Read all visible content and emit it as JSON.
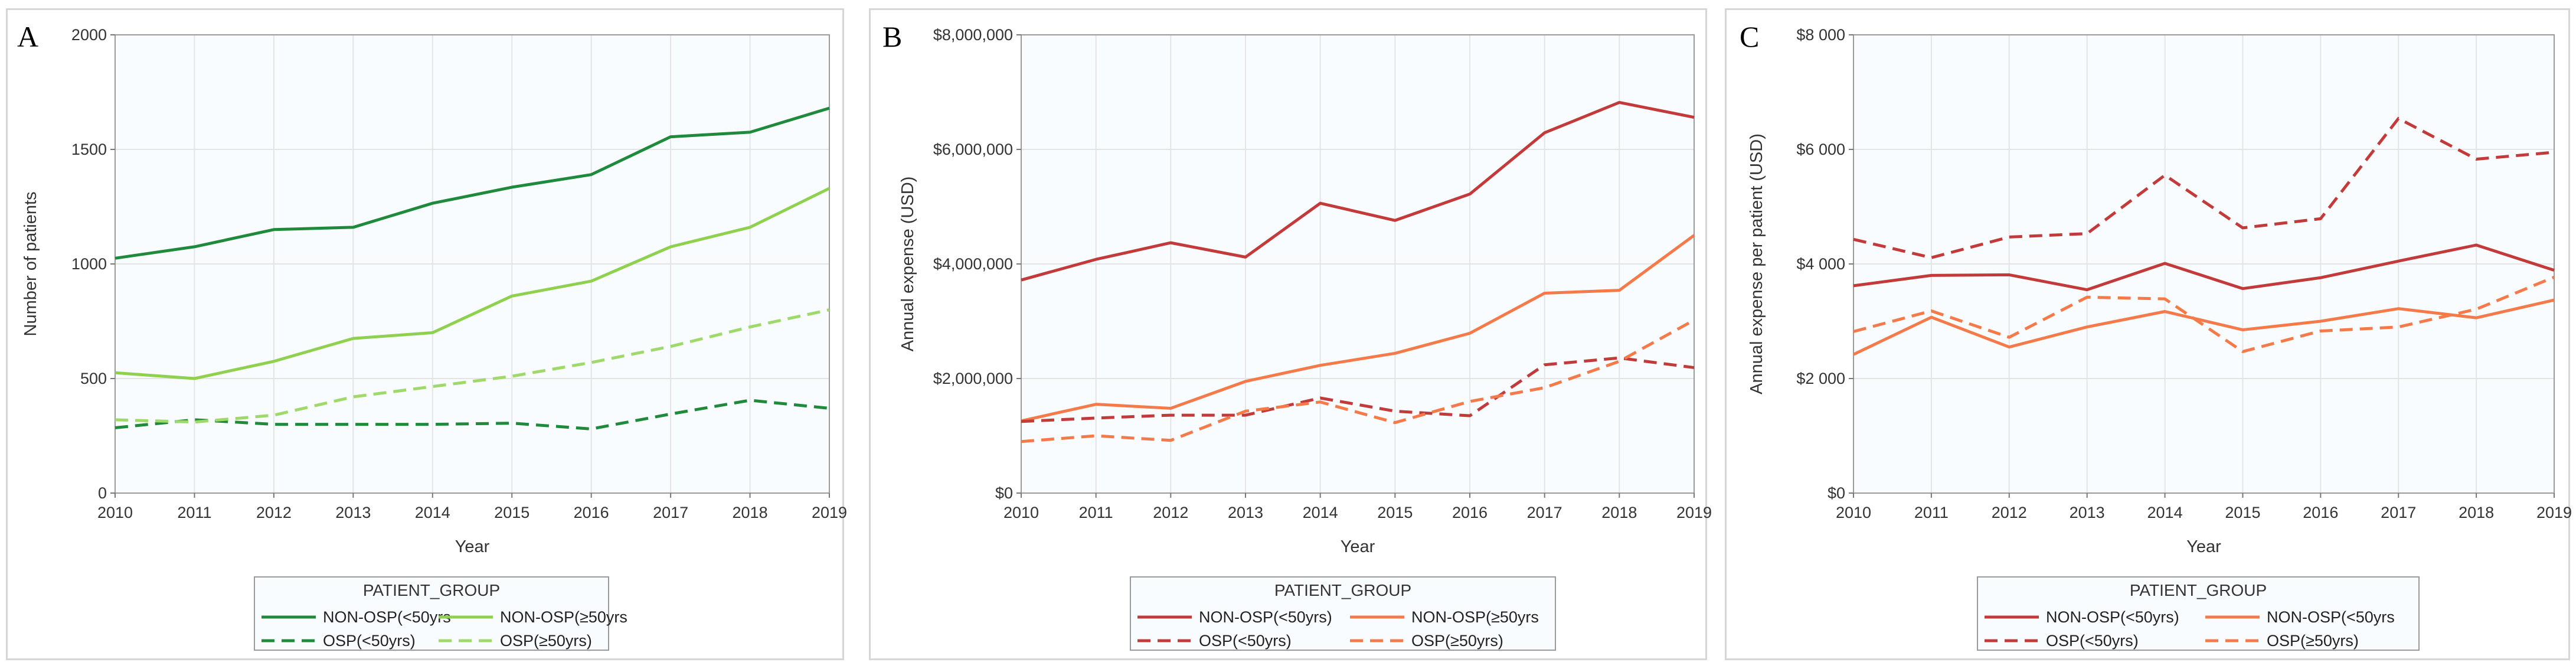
{
  "chart_data": [
    {
      "panel": "A",
      "type": "line",
      "title": "",
      "xlabel": "Year",
      "ylabel": "Number of patients",
      "x": [
        2010,
        2011,
        2012,
        2013,
        2014,
        2015,
        2016,
        2017,
        2018,
        2019
      ],
      "x_tick_labels": [
        "2010",
        "2011",
        "2012",
        "2013",
        "2014",
        "2015",
        "2016",
        "2017",
        "2018",
        "2019"
      ],
      "ylim": [
        0,
        2000
      ],
      "y_ticks": [
        0,
        500,
        1000,
        1500,
        2000
      ],
      "y_tick_labels": [
        "0",
        "500",
        "1000",
        "1500",
        "2000"
      ],
      "grid": true,
      "legend_title": "PATIENT_GROUP",
      "legend_position": "bottom",
      "series": [
        {
          "name": "NON-OSP(<50yrs",
          "color": "#1f8a3b",
          "dash": "solid",
          "values": [
            1025,
            1075,
            1150,
            1160,
            1265,
            1335,
            1390,
            1555,
            1575,
            1680
          ]
        },
        {
          "name": "NON-OSP(≥50yrs",
          "color": "#8fd14f",
          "dash": "solid",
          "values": [
            525,
            500,
            575,
            675,
            700,
            860,
            925,
            1075,
            1160,
            1330
          ]
        },
        {
          "name": "OSP(<50yrs)",
          "color": "#1f8a3b",
          "dash": "dashed",
          "values": [
            285,
            320,
            300,
            300,
            300,
            305,
            280,
            345,
            405,
            370
          ]
        },
        {
          "name": "OSP(≥50yrs)",
          "color": "#9ed96a",
          "dash": "dashed",
          "values": [
            320,
            310,
            340,
            420,
            465,
            510,
            570,
            640,
            725,
            800
          ]
        }
      ]
    },
    {
      "panel": "B",
      "type": "line",
      "title": "",
      "xlabel": "Year",
      "ylabel": "Annual expense (USD)",
      "x": [
        2010,
        2011,
        2012,
        2013,
        2014,
        2015,
        2016,
        2017,
        2018,
        2019
      ],
      "x_tick_labels": [
        "2010",
        "2011",
        "2012",
        "2013",
        "2014",
        "2015",
        "2016",
        "2017",
        "2018",
        "2019"
      ],
      "ylim": [
        0,
        8000000
      ],
      "y_ticks": [
        0,
        2000000,
        4000000,
        6000000,
        8000000
      ],
      "y_tick_labels": [
        "$0",
        "$2,000,000",
        "$4,000,000",
        "$6,000,000",
        "$8,000,000"
      ],
      "grid": true,
      "legend_title": "PATIENT_GROUP",
      "legend_position": "bottom",
      "series": [
        {
          "name": "NON-OSP(<50yrs)",
          "color": "#c23a3a",
          "dash": "solid",
          "values": [
            3720000,
            4080000,
            4370000,
            4120000,
            5060000,
            4760000,
            5220000,
            6290000,
            6820000,
            6560000
          ]
        },
        {
          "name": "NON-OSP(≥50yrs",
          "color": "#f47a4a",
          "dash": "solid",
          "values": [
            1260000,
            1550000,
            1480000,
            1950000,
            2230000,
            2440000,
            2790000,
            3490000,
            3540000,
            4500000
          ]
        },
        {
          "name": "OSP(<50yrs)",
          "color": "#c23a3a",
          "dash": "dashed",
          "values": [
            1250000,
            1310000,
            1360000,
            1360000,
            1660000,
            1430000,
            1350000,
            2240000,
            2360000,
            2190000
          ]
        },
        {
          "name": "OSP(≥50yrs)",
          "color": "#f47a4a",
          "dash": "dashed",
          "values": [
            900000,
            1000000,
            920000,
            1430000,
            1590000,
            1230000,
            1600000,
            1840000,
            2300000,
            3020000
          ]
        }
      ]
    },
    {
      "panel": "C",
      "type": "line",
      "title": "",
      "xlabel": "Year",
      "ylabel": "Annual expense per patient (USD)",
      "x": [
        2010,
        2011,
        2012,
        2013,
        2014,
        2015,
        2016,
        2017,
        2018,
        2019
      ],
      "x_tick_labels": [
        "2010",
        "2011",
        "2012",
        "2013",
        "2014",
        "2015",
        "2016",
        "2017",
        "2018",
        "2019"
      ],
      "ylim": [
        0,
        8000
      ],
      "y_ticks": [
        0,
        2000,
        4000,
        6000,
        8000
      ],
      "y_tick_labels": [
        "$0",
        "$2 000",
        "$4 000",
        "$6 000",
        "$8 000"
      ],
      "grid": true,
      "legend_title": "PATIENT_GROUP",
      "legend_position": "bottom",
      "series": [
        {
          "name": "NON-OSP(<50yrs)",
          "color": "#c23a3a",
          "dash": "solid",
          "values": [
            3620,
            3800,
            3810,
            3550,
            4010,
            3570,
            3760,
            4050,
            4330,
            3890
          ]
        },
        {
          "name": "NON-OSP(<50yrs",
          "color": "#f47a4a",
          "dash": "solid",
          "values": [
            2420,
            3070,
            2550,
            2900,
            3170,
            2850,
            3000,
            3220,
            3060,
            3370
          ]
        },
        {
          "name": "OSP(<50yrs)",
          "color": "#c23a3a",
          "dash": "dashed",
          "values": [
            4430,
            4110,
            4470,
            4530,
            5550,
            4630,
            4790,
            6540,
            5830,
            5950
          ]
        },
        {
          "name": "OSP(≥50yrs)",
          "color": "#f47a4a",
          "dash": "dashed",
          "values": [
            2820,
            3180,
            2720,
            3420,
            3390,
            2470,
            2830,
            2900,
            3210,
            3770
          ]
        }
      ]
    }
  ]
}
